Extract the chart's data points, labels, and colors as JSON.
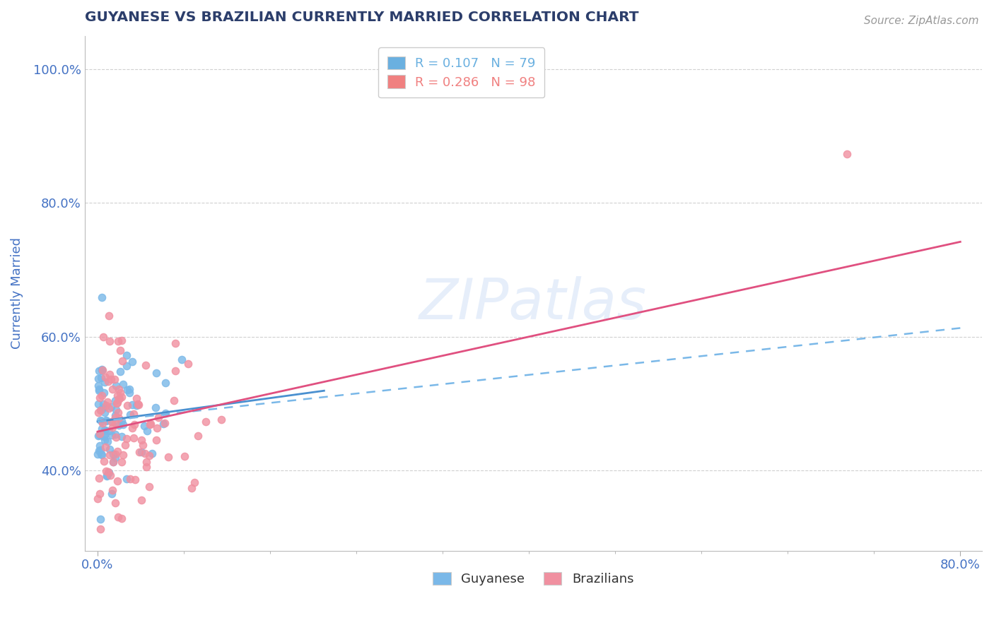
{
  "title": "GUYANESE VS BRAZILIAN CURRENTLY MARRIED CORRELATION CHART",
  "source": "Source: ZipAtlas.com",
  "ylabel_label": "Currently Married",
  "watermark_text": "ZIPatlas",
  "legend_series": [
    {
      "label": "R = 0.107   N = 79",
      "color": "#6ab0e0"
    },
    {
      "label": "R = 0.286   N = 98",
      "color": "#f08080"
    }
  ],
  "guyanese": {
    "color": "#7ab8e8",
    "seed": 42,
    "N": 79,
    "trend_solid_color": "#4a90d0",
    "trend_dash_color": "#7ab8e8",
    "trend_solid_intercept": 0.473,
    "trend_solid_slope": 0.22,
    "trend_solid_xmax": 0.21,
    "trend_dash_intercept": 0.473,
    "trend_dash_slope": 0.175
  },
  "brazilians": {
    "color": "#f090a0",
    "seed": 7,
    "N": 98,
    "trend_color": "#e05080",
    "trend_intercept": 0.458,
    "trend_slope": 0.355
  },
  "xlim": [
    -0.012,
    0.82
  ],
  "ylim": [
    0.28,
    1.05
  ],
  "y_ticks": [
    0.4,
    0.6,
    0.8,
    1.0
  ],
  "x_ticks": [
    0.0,
    0.8
  ],
  "background_color": "#ffffff",
  "grid_color": "#d0d0d0",
  "title_color": "#2c3e6b",
  "axis_label_color": "#4472c4",
  "tick_color": "#4472c4"
}
